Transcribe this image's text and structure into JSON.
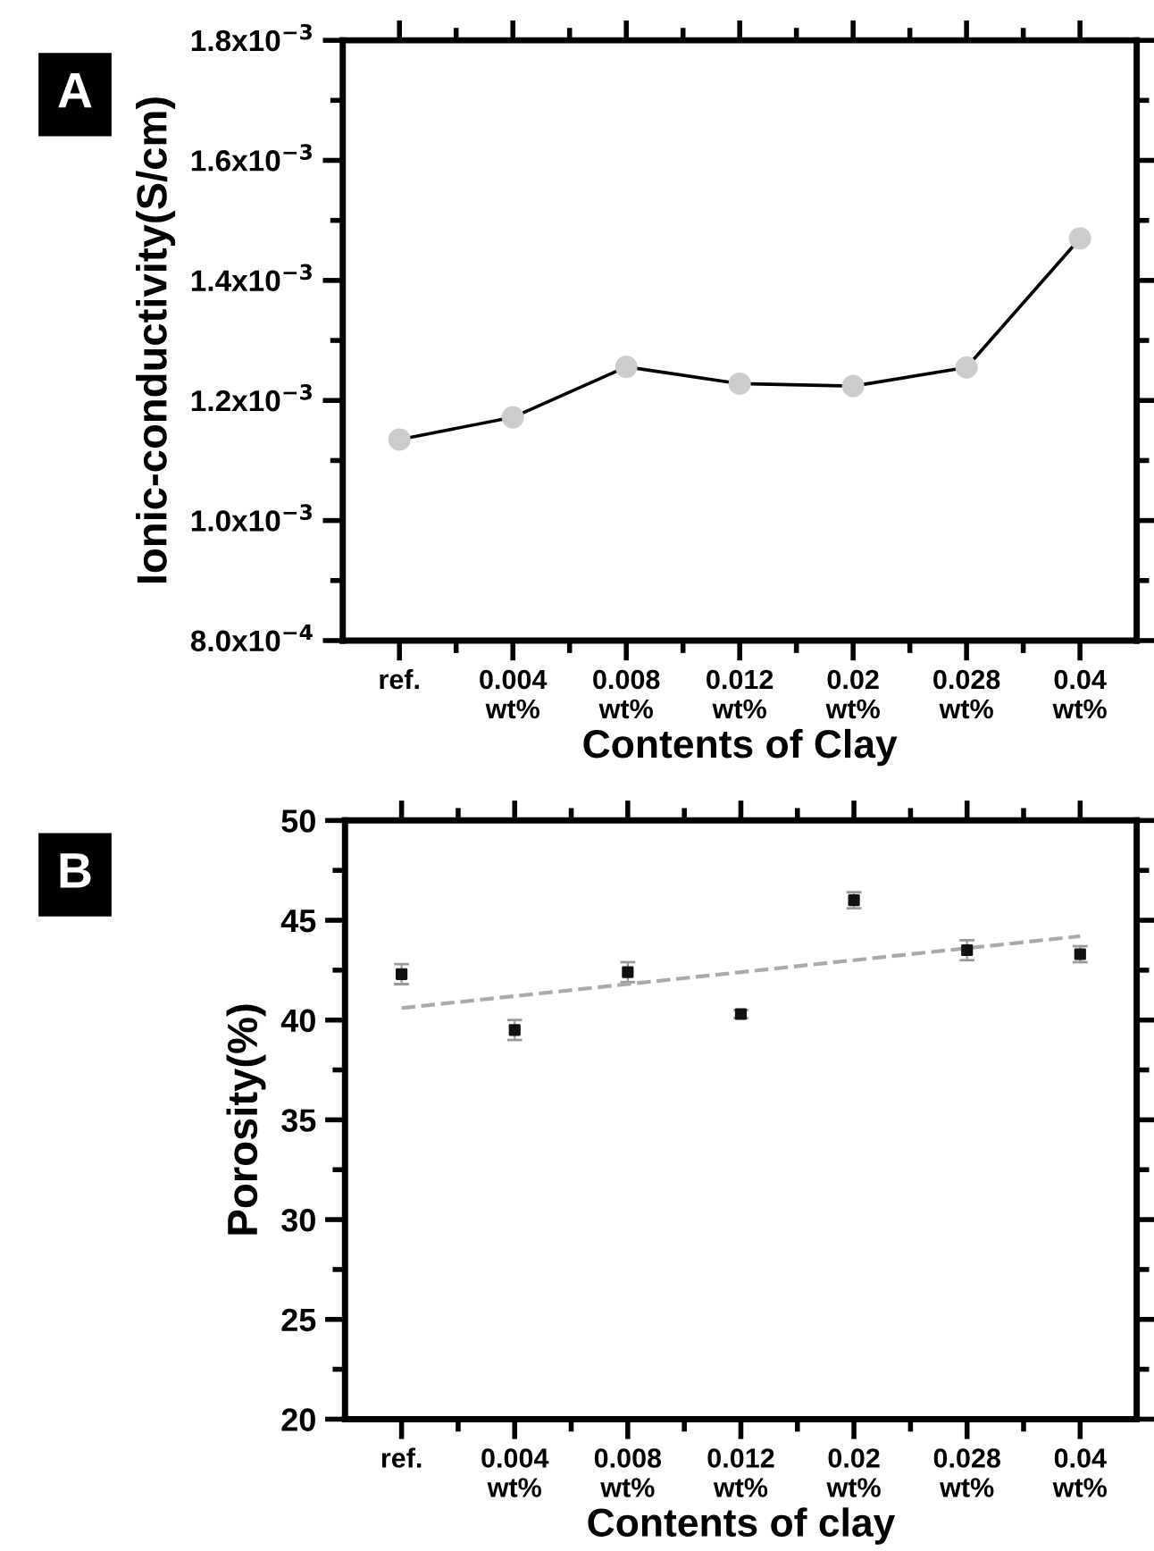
{
  "chart_data": [
    {
      "type": "line",
      "xlabel": "Contents of Clay",
      "ylabel": "Ionic-conductivity(S/cm)",
      "annotations": [
        "A"
      ],
      "categories": [
        "ref.",
        "0.004\nwt%",
        "0.008\nwt%",
        "0.012\nwt%",
        "0.02\nwt%",
        "0.028\nwt%",
        "0.04\nwt%"
      ],
      "series": [
        {
          "color": "#000000",
          "colors": [
            "#cccccc",
            "#cccccc",
            "#cccccc",
            "#cccccc",
            "#cccccc",
            "#cccccc",
            "#cccccc"
          ],
          "values": [
            0.001135,
            0.001172,
            0.001256,
            0.001228,
            0.001224,
            0.001255,
            0.00147
          ]
        }
      ],
      "marker": "circle",
      "line_style": "solid",
      "grid": false,
      "legend": false,
      "ylim": [
        0.0008,
        0.0018
      ],
      "yticks": [
        {
          "value": 0.0008,
          "label": "8.0x10$^{−4}$"
        },
        {
          "value": 0.001,
          "label": "1.0x10$^{−3}$"
        },
        {
          "value": 0.0012,
          "label": "1.2x10$^{−3}$"
        },
        {
          "value": 0.0014,
          "label": "1.4x10$^{−3}$"
        },
        {
          "value": 0.0016,
          "label": "1.6x10$^{−3}$"
        },
        {
          "value": 0.0018,
          "label": "1.8x10$^{−3}$"
        }
      ]
    },
    {
      "type": "scatter",
      "xlabel": "Contents of clay",
      "ylabel": "Porosity(%)",
      "annotations": [
        "B"
      ],
      "categories": [
        "ref.",
        "0.004\nwt%",
        "0.008\nwt%",
        "0.012\nwt%",
        "0.02\nwt%",
        "0.028\nwt%",
        "0.04\nwt%"
      ],
      "series": [
        {
          "color": "#111111",
          "values": [
            42.3,
            39.5,
            42.4,
            40.3,
            46.0,
            43.5,
            43.3
          ],
          "errors": [
            0.5,
            0.5,
            0.5,
            0.2,
            0.4,
            0.5,
            0.4
          ],
          "marker": "square"
        },
        {
          "type": "line",
          "color": "#aaaaaa",
          "line_style": "dashed",
          "marker": "none",
          "values": [
            40.6,
            41.2,
            41.8,
            42.4,
            43.0,
            43.6,
            44.2
          ]
        }
      ],
      "grid": false,
      "legend": false,
      "ylim": [
        20,
        50
      ],
      "yticks": [
        20,
        25,
        30,
        35,
        40,
        45,
        50
      ]
    }
  ]
}
